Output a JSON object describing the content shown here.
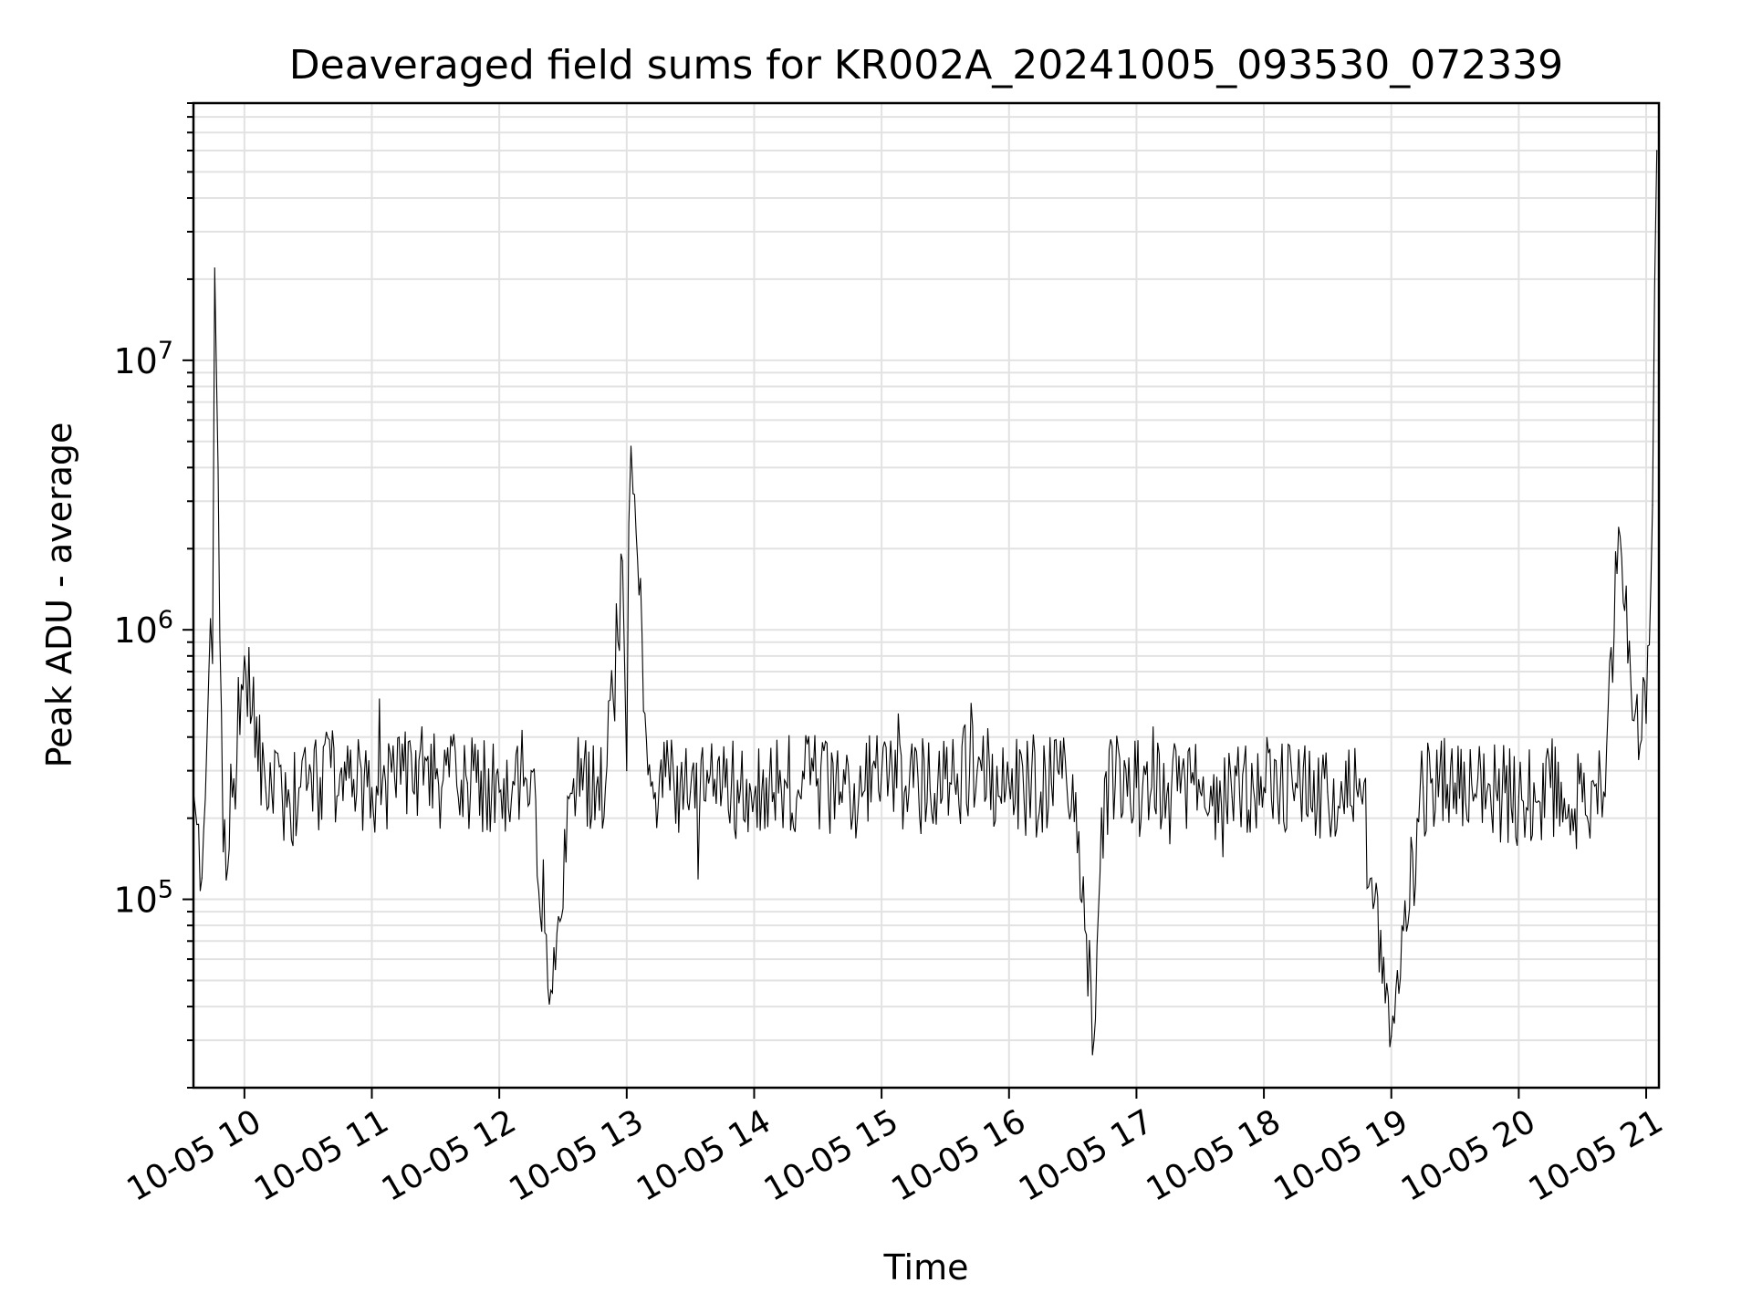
{
  "chart_data": {
    "type": "line",
    "title": "Deaveraged field sums for KR002A_20241005_093530_072339",
    "xlabel": "Time",
    "ylabel": "Peak ADU - average",
    "yscale": "log",
    "grid": true,
    "x_range": [
      "2024-10-05 09:36",
      "2024-10-05 21:06"
    ],
    "y_range": [
      20000,
      90000000
    ],
    "x_ticks": [
      {
        "value": "2024-10-05 10:00",
        "label": "10-05 10"
      },
      {
        "value": "2024-10-05 11:00",
        "label": "10-05 11"
      },
      {
        "value": "2024-10-05 12:00",
        "label": "10-05 12"
      },
      {
        "value": "2024-10-05 13:00",
        "label": "10-05 13"
      },
      {
        "value": "2024-10-05 14:00",
        "label": "10-05 14"
      },
      {
        "value": "2024-10-05 15:00",
        "label": "10-05 15"
      },
      {
        "value": "2024-10-05 16:00",
        "label": "10-05 16"
      },
      {
        "value": "2024-10-05 17:00",
        "label": "10-05 17"
      },
      {
        "value": "2024-10-05 18:00",
        "label": "10-05 18"
      },
      {
        "value": "2024-10-05 19:00",
        "label": "10-05 19"
      },
      {
        "value": "2024-10-05 20:00",
        "label": "10-05 20"
      },
      {
        "value": "2024-10-05 21:00",
        "label": "10-05 21"
      }
    ],
    "y_ticks": [
      {
        "value": 100000,
        "base": "10",
        "exp": "5"
      },
      {
        "value": 1000000,
        "base": "10",
        "exp": "6"
      },
      {
        "value": 10000000,
        "base": "10",
        "exp": "7"
      }
    ],
    "series": [
      {
        "color": "#000000",
        "x": [
          "2024-10-05 09:36",
          "2024-10-05 09:40",
          "2024-10-05 09:44",
          "2024-10-05 09:45",
          "2024-10-05 09:46",
          "2024-10-05 09:50",
          "2024-10-05 09:55",
          "2024-10-05 10:00",
          "2024-10-05 10:10",
          "2024-10-05 10:20",
          "2024-10-05 10:30",
          "2024-10-05 10:45",
          "2024-10-05 11:00",
          "2024-10-05 11:15",
          "2024-10-05 11:30",
          "2024-10-05 11:45",
          "2024-10-05 12:00",
          "2024-10-05 12:15",
          "2024-10-05 12:25",
          "2024-10-05 12:35",
          "2024-10-05 12:50",
          "2024-10-05 12:58",
          "2024-10-05 13:00",
          "2024-10-05 13:02",
          "2024-10-05 13:03",
          "2024-10-05 13:10",
          "2024-10-05 13:30",
          "2024-10-05 13:45",
          "2024-10-05 14:00",
          "2024-10-05 14:15",
          "2024-10-05 14:30",
          "2024-10-05 14:45",
          "2024-10-05 15:00",
          "2024-10-05 15:15",
          "2024-10-05 15:30",
          "2024-10-05 15:45",
          "2024-10-05 16:00",
          "2024-10-05 16:15",
          "2024-10-05 16:30",
          "2024-10-05 16:40",
          "2024-10-05 16:45",
          "2024-10-05 17:00",
          "2024-10-05 17:15",
          "2024-10-05 17:30",
          "2024-10-05 17:45",
          "2024-10-05 18:00",
          "2024-10-05 18:15",
          "2024-10-05 18:30",
          "2024-10-05 18:45",
          "2024-10-05 19:00",
          "2024-10-05 19:15",
          "2024-10-05 19:30",
          "2024-10-05 19:45",
          "2024-10-05 20:00",
          "2024-10-05 20:15",
          "2024-10-05 20:30",
          "2024-10-05 20:40",
          "2024-10-05 20:47",
          "2024-10-05 20:55",
          "2024-10-05 21:00",
          "2024-10-05 21:03",
          "2024-10-05 21:05"
        ],
        "y": [
          250000,
          120000,
          1100000,
          750000,
          22000000,
          150000,
          280000,
          800000,
          260000,
          220000,
          270000,
          290000,
          260000,
          300000,
          280000,
          270000,
          250000,
          300000,
          45000,
          280000,
          260000,
          1800000,
          300000,
          4800000,
          3200000,
          290000,
          250000,
          260000,
          240000,
          270000,
          280000,
          250000,
          290000,
          260000,
          280000,
          300000,
          270000,
          250000,
          290000,
          30000,
          280000,
          260000,
          270000,
          250000,
          240000,
          260000,
          270000,
          250000,
          280000,
          31000,
          260000,
          270000,
          250000,
          240000,
          260000,
          230000,
          250000,
          2400000,
          500000,
          450000,
          2900000,
          60000000
        ]
      }
    ]
  }
}
